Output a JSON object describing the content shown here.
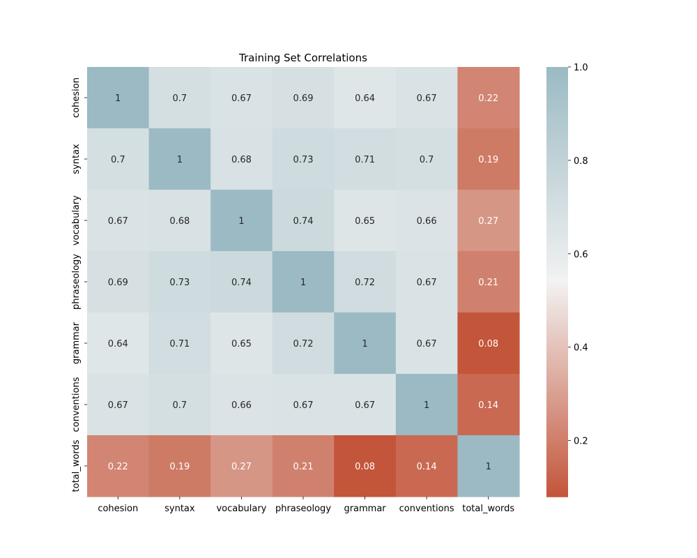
{
  "chart_data": {
    "type": "heatmap",
    "title": "Training Set Correlations",
    "xlabel": "",
    "ylabel": "",
    "x_categories": [
      "cohesion",
      "syntax",
      "vocabulary",
      "phraseology",
      "grammar",
      "conventions",
      "total_words"
    ],
    "y_categories": [
      "cohesion",
      "syntax",
      "vocabulary",
      "phraseology",
      "grammar",
      "conventions",
      "total_words"
    ],
    "values": [
      [
        1,
        0.7,
        0.67,
        0.69,
        0.64,
        0.67,
        0.22
      ],
      [
        0.7,
        1,
        0.68,
        0.73,
        0.71,
        0.7,
        0.19
      ],
      [
        0.67,
        0.68,
        1,
        0.74,
        0.65,
        0.66,
        0.27
      ],
      [
        0.69,
        0.73,
        0.74,
        1,
        0.72,
        0.67,
        0.21
      ],
      [
        0.64,
        0.71,
        0.65,
        0.72,
        1,
        0.67,
        0.08
      ],
      [
        0.67,
        0.7,
        0.66,
        0.67,
        0.67,
        1,
        0.14
      ],
      [
        0.22,
        0.19,
        0.27,
        0.21,
        0.08,
        0.14,
        1
      ]
    ],
    "value_labels": [
      [
        "1",
        "0.7",
        "0.67",
        "0.69",
        "0.64",
        "0.67",
        "0.22"
      ],
      [
        "0.7",
        "1",
        "0.68",
        "0.73",
        "0.71",
        "0.7",
        "0.19"
      ],
      [
        "0.67",
        "0.68",
        "1",
        "0.74",
        "0.65",
        "0.66",
        "0.27"
      ],
      [
        "0.69",
        "0.73",
        "0.74",
        "1",
        "0.72",
        "0.67",
        "0.21"
      ],
      [
        "0.64",
        "0.71",
        "0.65",
        "0.72",
        "1",
        "0.67",
        "0.08"
      ],
      [
        "0.67",
        "0.7",
        "0.66",
        "0.67",
        "0.67",
        "1",
        "0.14"
      ],
      [
        "0.22",
        "0.19",
        "0.27",
        "0.21",
        "0.08",
        "0.14",
        "1"
      ]
    ],
    "colorbar": {
      "range": [
        0.08,
        1.0
      ],
      "ticks": [
        0.2,
        0.4,
        0.6,
        0.8,
        1.0
      ],
      "tick_labels": [
        "0.2",
        "0.4",
        "0.6",
        "0.8",
        "1.0"
      ],
      "colors": {
        "low": "#c3553a",
        "mid": "#f2f2f2",
        "high": "#9bbac3"
      }
    },
    "grid": false,
    "legend": "colorbar-right"
  }
}
